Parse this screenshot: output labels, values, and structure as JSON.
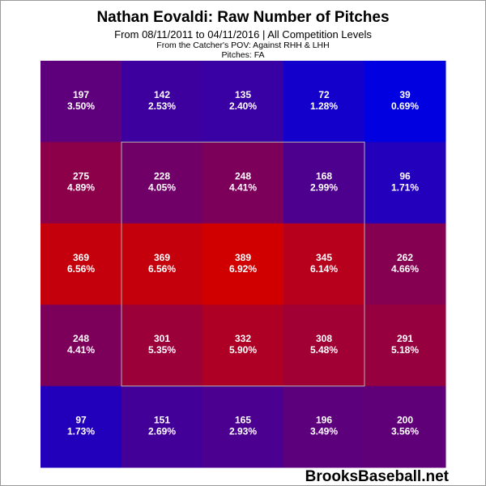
{
  "title": "Nathan Eovaldi: Raw Number of Pitches",
  "subtitle": "From 08/11/2011 to 04/11/2016 | All Competition Levels",
  "line3": "From the Catcher's POV:  Against RHH & LHH",
  "line4": "Pitches:  FA",
  "brand": "BrooksBaseball.net",
  "colors": {
    "high": "#d00000",
    "low": "#0000e0",
    "text": "#ffffff",
    "zone": "#b0b0b0"
  },
  "chart_data": {
    "type": "heatmap",
    "rows": 5,
    "cols": 5,
    "strike_zone": "center 3x3 cells outlined",
    "counts": [
      [
        197,
        142,
        135,
        72,
        39
      ],
      [
        275,
        228,
        248,
        168,
        96
      ],
      [
        369,
        369,
        389,
        345,
        262
      ],
      [
        248,
        301,
        332,
        308,
        291
      ],
      [
        97,
        151,
        165,
        196,
        200
      ]
    ],
    "percents": [
      [
        "3.50%",
        "2.53%",
        "2.40%",
        "1.28%",
        "0.69%"
      ],
      [
        "4.89%",
        "4.05%",
        "4.41%",
        "2.99%",
        "1.71%"
      ],
      [
        "6.56%",
        "6.56%",
        "6.92%",
        "6.14%",
        "4.66%"
      ],
      [
        "4.41%",
        "5.35%",
        "5.90%",
        "5.48%",
        "5.18%"
      ],
      [
        "1.73%",
        "2.69%",
        "2.93%",
        "3.49%",
        "3.56%"
      ]
    ],
    "color_scale": {
      "min": 39,
      "max": 389
    }
  }
}
